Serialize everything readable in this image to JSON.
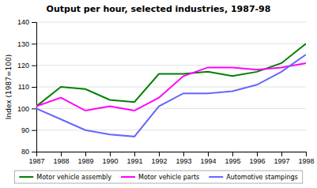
{
  "chart_data": {
    "type": "line",
    "title": "Output per hour, selected industries, 1987-98",
    "y_label": "Index (1987=100)",
    "x": [
      1987,
      1988,
      1989,
      1990,
      1991,
      1992,
      1993,
      1994,
      1995,
      1996,
      1997,
      1998
    ],
    "series": [
      {
        "name": "Motor vehicle assembly",
        "color": "#008000",
        "values": [
          101,
          110,
          109,
          104,
          103,
          116,
          116,
          117,
          115,
          117,
          121,
          130
        ]
      },
      {
        "name": "Motor vehicle parts",
        "color": "#ff00ff",
        "values": [
          101,
          105,
          99,
          101,
          99,
          105,
          115,
          119,
          119,
          118,
          119,
          121
        ]
      },
      {
        "name": "Automotive stampings",
        "color": "#6666ff",
        "values": [
          100,
          95,
          90,
          88,
          87,
          101,
          107,
          107,
          108,
          111,
          117,
          125
        ]
      }
    ],
    "xlim": [
      1987,
      1998
    ],
    "xticks": [
      1987,
      1988,
      1989,
      1990,
      1991,
      1992,
      1993,
      1994,
      1995,
      1996,
      1997,
      1998
    ],
    "ylim": [
      80,
      140
    ],
    "yticks": [
      80,
      90,
      100,
      110,
      120,
      130,
      140
    ],
    "grid": true,
    "legend": "bottom"
  }
}
